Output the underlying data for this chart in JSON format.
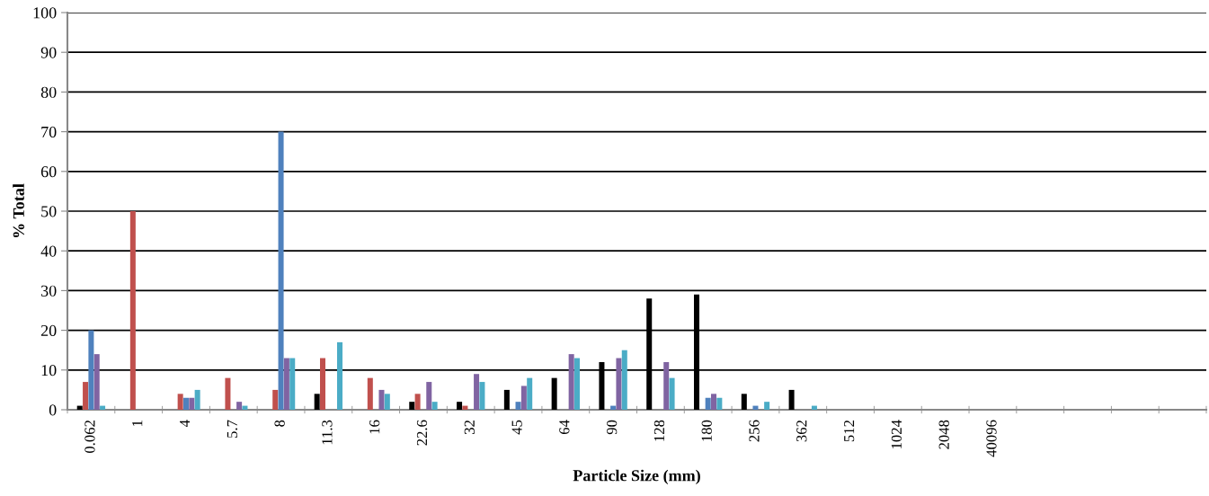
{
  "chart_data": {
    "type": "bar",
    "xlabel": "Particle Size (mm)",
    "ylabel": "% Total",
    "categories": [
      "0.062",
      "1",
      "4",
      "5.7",
      "8",
      "11.3",
      "16",
      "22.6",
      "32",
      "45",
      "64",
      "90",
      "128",
      "180",
      "256",
      "362",
      "512",
      "1024",
      "2048",
      "40096",
      null,
      null,
      null,
      null
    ],
    "series": [
      {
        "color": "#000000",
        "values": [
          1,
          null,
          null,
          null,
          null,
          4,
          null,
          2,
          2,
          5,
          8,
          12,
          28,
          29,
          4,
          5,
          null,
          null,
          null,
          null,
          null,
          null,
          null,
          null
        ]
      },
      {
        "color": "#c0504d",
        "values": [
          7,
          50,
          4,
          8,
          5,
          13,
          8,
          4,
          1,
          null,
          null,
          null,
          null,
          null,
          null,
          null,
          null,
          null,
          null,
          null,
          null,
          null,
          null,
          null
        ]
      },
      {
        "color": "#4f81bd",
        "values": [
          20,
          null,
          3,
          null,
          70,
          null,
          null,
          null,
          null,
          2,
          null,
          1,
          null,
          3,
          1,
          null,
          null,
          null,
          null,
          null,
          null,
          null,
          null,
          null
        ]
      },
      {
        "color": "#8064a2",
        "values": [
          14,
          null,
          3,
          2,
          13,
          null,
          5,
          7,
          9,
          6,
          14,
          13,
          12,
          4,
          null,
          null,
          null,
          null,
          null,
          null,
          null,
          null,
          null,
          null
        ]
      },
      {
        "color": "#4bacc6",
        "values": [
          1,
          null,
          5,
          1,
          13,
          17,
          4,
          2,
          7,
          8,
          13,
          15,
          8,
          3,
          2,
          1,
          null,
          null,
          null,
          null,
          null,
          null,
          null,
          null
        ]
      }
    ],
    "ylim": [
      0,
      100
    ],
    "yticks": [
      0,
      10,
      20,
      30,
      40,
      50,
      60,
      70,
      80,
      90,
      100
    ],
    "grid": "y",
    "legend": false
  }
}
